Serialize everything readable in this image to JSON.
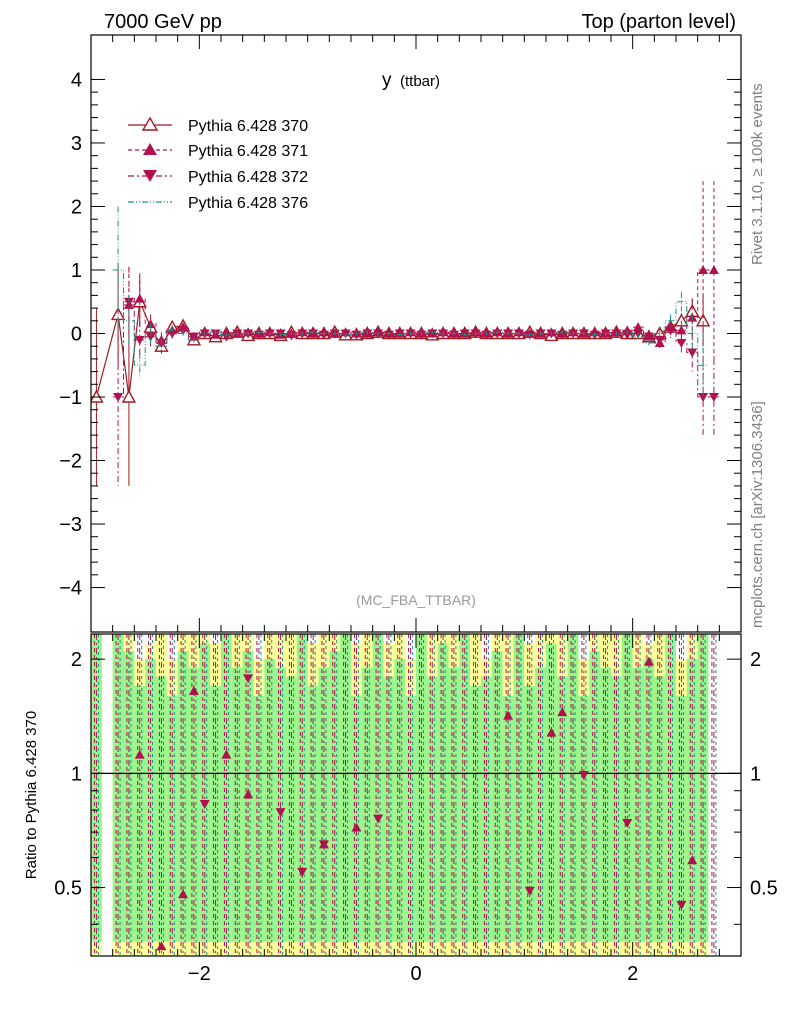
{
  "header": {
    "left": "7000 GeV pp",
    "right": "Top (parton level)"
  },
  "side_labels": {
    "top": "Rivet 3.1.10, ≥ 100k events",
    "bottom": "mcplots.cern.ch [arXiv:1306.3436]"
  },
  "colors": {
    "s370": "#9e1b22",
    "s371": "#b0124f",
    "s372": "#b0124f",
    "s376": "#1f8f86",
    "band_yellow": "#ffff99",
    "band_green": "#99f58c"
  },
  "chart_data": [
    {
      "type": "line",
      "title": "y (ttbar)",
      "title_main": "y",
      "title_sub": "(ttbar)",
      "analysis": "(MC_FBA_TTBAR)",
      "xlim": [
        -3.0,
        3.0
      ],
      "ylim": [
        -4.7,
        4.7
      ],
      "yticks": [
        -4,
        -3,
        -2,
        -1,
        0,
        1,
        2,
        3,
        4
      ],
      "ytick_labels": [
        "−4",
        "−3",
        "−2",
        "−1",
        "0",
        "1",
        "2",
        "3",
        "4"
      ],
      "legend_position": "top-left",
      "x": [
        -2.95,
        -2.75,
        -2.65,
        -2.55,
        -2.45,
        -2.35,
        -2.25,
        -2.15,
        -2.05,
        -1.95,
        -1.85,
        -1.75,
        -1.65,
        -1.55,
        -1.45,
        -1.35,
        -1.25,
        -1.15,
        -1.05,
        -0.95,
        -0.85,
        -0.75,
        -0.65,
        -0.55,
        -0.45,
        -0.35,
        -0.25,
        -0.15,
        -0.05,
        0.05,
        0.15,
        0.25,
        0.35,
        0.45,
        0.55,
        0.65,
        0.75,
        0.85,
        0.95,
        1.05,
        1.15,
        1.25,
        1.35,
        1.45,
        1.55,
        1.65,
        1.75,
        1.85,
        1.95,
        2.05,
        2.15,
        2.25,
        2.35,
        2.45,
        2.55,
        2.65,
        2.75
      ],
      "series": [
        {
          "name": "Pythia 6.428 370",
          "marker": "triangle-up-open",
          "style": "solid",
          "values": [
            -1.0,
            0.3,
            -1.0,
            0.5,
            0.1,
            -0.2,
            0.1,
            0.12,
            -0.1,
            0.0,
            -0.05,
            0.0,
            0.02,
            -0.03,
            0.0,
            0.0,
            -0.03,
            0.02,
            0.0,
            0.0,
            0.0,
            0.02,
            -0.02,
            -0.02,
            0.0,
            0.02,
            0.0,
            0.0,
            0.0,
            0.0,
            -0.02,
            0.0,
            0.0,
            0.0,
            0.02,
            0.0,
            0.0,
            0.0,
            0.0,
            0.02,
            0.0,
            -0.03,
            0.0,
            0.0,
            0.0,
            0.0,
            0.0,
            0.02,
            0.0,
            0.0,
            -0.05,
            0.0,
            0.1,
            0.2,
            0.35,
            0.2,
            null
          ],
          "errors": [
            1.4,
            0.8,
            1.4,
            0.4,
            0.15,
            0.12,
            0.08,
            0.06,
            0.05,
            0.04,
            0.04,
            0.03,
            0.03,
            0.03,
            0.03,
            0.03,
            0.03,
            0.03,
            0.03,
            0.03,
            0.03,
            0.03,
            0.03,
            0.03,
            0.03,
            0.03,
            0.03,
            0.03,
            0.03,
            0.03,
            0.03,
            0.03,
            0.03,
            0.03,
            0.03,
            0.03,
            0.03,
            0.03,
            0.03,
            0.03,
            0.03,
            0.03,
            0.03,
            0.03,
            0.03,
            0.03,
            0.03,
            0.03,
            0.04,
            0.04,
            0.05,
            0.06,
            0.08,
            0.12,
            0.2,
            0.4,
            null
          ]
        },
        {
          "name": "Pythia 6.428 371",
          "marker": "triangle-up-filled",
          "style": "dashed",
          "values": [
            null,
            null,
            0.45,
            0.55,
            0.15,
            -0.1,
            0.05,
            0.1,
            -0.05,
            0.02,
            -0.02,
            0.03,
            0.0,
            0.02,
            0.0,
            0.02,
            -0.02,
            0.0,
            0.02,
            0.0,
            0.02,
            0.0,
            0.02,
            0.0,
            0.0,
            0.02,
            0.0,
            0.0,
            0.02,
            0.0,
            0.0,
            0.02,
            0.0,
            0.0,
            0.02,
            0.0,
            0.02,
            0.0,
            0.02,
            0.0,
            0.0,
            0.02,
            0.0,
            0.02,
            0.0,
            0.02,
            0.0,
            0.02,
            0.05,
            0.1,
            -0.05,
            -0.15,
            0.1,
            0.05,
            0.25,
            1.0,
            1.0
          ],
          "errors": [
            null,
            null,
            0.6,
            0.4,
            0.15,
            0.12,
            0.08,
            0.06,
            0.05,
            0.04,
            0.04,
            0.03,
            0.03,
            0.03,
            0.03,
            0.03,
            0.03,
            0.03,
            0.03,
            0.03,
            0.03,
            0.03,
            0.03,
            0.03,
            0.03,
            0.03,
            0.03,
            0.03,
            0.03,
            0.03,
            0.03,
            0.03,
            0.03,
            0.03,
            0.03,
            0.03,
            0.03,
            0.03,
            0.03,
            0.03,
            0.03,
            0.03,
            0.03,
            0.03,
            0.03,
            0.03,
            0.03,
            0.03,
            0.04,
            0.05,
            0.06,
            0.08,
            0.12,
            0.15,
            0.3,
            1.4,
            1.4
          ]
        },
        {
          "name": "Pythia 6.428 372",
          "marker": "triangle-down-filled",
          "style": "dashdot",
          "values": [
            null,
            -1.0,
            0.5,
            -0.1,
            -0.05,
            -0.15,
            0.0,
            0.05,
            -0.05,
            0.0,
            0.0,
            -0.05,
            0.0,
            0.0,
            -0.02,
            0.0,
            0.0,
            -0.03,
            0.0,
            0.0,
            -0.02,
            0.0,
            0.0,
            -0.02,
            0.0,
            0.0,
            -0.02,
            0.0,
            0.0,
            -0.02,
            0.0,
            0.0,
            -0.02,
            0.0,
            0.0,
            -0.02,
            0.0,
            0.0,
            0.0,
            -0.02,
            0.0,
            0.0,
            -0.02,
            0.0,
            0.0,
            -0.02,
            0.0,
            0.0,
            -0.02,
            0.0,
            -0.05,
            -0.1,
            0.05,
            -0.15,
            -0.3,
            -1.0,
            -1.0
          ],
          "errors": [
            null,
            1.4,
            0.55,
            0.3,
            0.15,
            0.12,
            0.08,
            0.06,
            0.05,
            0.04,
            0.04,
            0.03,
            0.03,
            0.03,
            0.03,
            0.03,
            0.03,
            0.03,
            0.03,
            0.03,
            0.03,
            0.03,
            0.03,
            0.03,
            0.03,
            0.03,
            0.03,
            0.03,
            0.03,
            0.03,
            0.03,
            0.03,
            0.03,
            0.03,
            0.03,
            0.03,
            0.03,
            0.03,
            0.03,
            0.03,
            0.03,
            0.03,
            0.03,
            0.03,
            0.03,
            0.03,
            0.03,
            0.03,
            0.04,
            0.05,
            0.06,
            0.08,
            0.12,
            0.15,
            0.3,
            0.6,
            0.6
          ]
        },
        {
          "name": "Pythia 6.428 376",
          "marker": "none",
          "style": "dashdotdot",
          "values": [
            null,
            1.0,
            0.2,
            -0.5,
            0.0,
            -0.2,
            0.05,
            0.0,
            -0.1,
            0.0,
            0.02,
            -0.02,
            0.0,
            0.0,
            0.02,
            0.0,
            -0.02,
            0.0,
            0.0,
            0.02,
            0.0,
            0.0,
            -0.02,
            0.0,
            0.02,
            0.0,
            0.0,
            -0.02,
            0.0,
            0.0,
            0.02,
            0.0,
            0.0,
            -0.02,
            0.0,
            0.0,
            0.02,
            0.0,
            0.0,
            -0.02,
            0.0,
            0.0,
            0.02,
            0.0,
            0.0,
            -0.02,
            0.0,
            0.0,
            0.02,
            -0.05,
            -0.15,
            0.0,
            0.2,
            0.5,
            0.0,
            -0.5,
            null
          ],
          "errors": [
            null,
            1.0,
            0.4,
            0.2,
            0.15,
            0.12,
            0.08,
            0.06,
            0.05,
            0.04,
            0.04,
            0.03,
            0.03,
            0.03,
            0.03,
            0.03,
            0.03,
            0.03,
            0.03,
            0.03,
            0.03,
            0.03,
            0.03,
            0.03,
            0.03,
            0.03,
            0.03,
            0.03,
            0.03,
            0.03,
            0.03,
            0.03,
            0.03,
            0.03,
            0.03,
            0.03,
            0.03,
            0.03,
            0.03,
            0.03,
            0.03,
            0.03,
            0.03,
            0.03,
            0.03,
            0.03,
            0.03,
            0.03,
            0.04,
            0.05,
            0.06,
            0.08,
            0.1,
            0.15,
            0.3,
            0.5,
            null
          ]
        }
      ]
    },
    {
      "type": "line",
      "ylabel": "Ratio to Pythia 6.428 370",
      "xlim": [
        -3.0,
        3.0
      ],
      "ylim": [
        0.33,
        2.33
      ],
      "xticks": [
        -2,
        0,
        2
      ],
      "xtick_labels": [
        "−2",
        "0",
        "2"
      ],
      "yticks": [
        0.5,
        1,
        2
      ],
      "ytick_labels": [
        "0.5",
        "1",
        "2"
      ],
      "reference_line": 1,
      "bands": {
        "x": [
          -2.95,
          -2.85,
          -2.75,
          -2.65,
          -2.55,
          -2.45,
          -2.35,
          -2.25,
          -2.15,
          -2.05,
          -1.95,
          -1.85,
          -1.75,
          -1.65,
          -1.55,
          -1.45,
          -1.35,
          -1.25,
          -1.15,
          -1.05,
          -0.95,
          -0.85,
          -0.75,
          -0.65,
          -0.55,
          -0.45,
          -0.35,
          -0.25,
          -0.15,
          -0.05,
          0.05,
          0.15,
          0.25,
          0.35,
          0.45,
          0.55,
          0.65,
          0.75,
          0.85,
          0.95,
          1.05,
          1.15,
          1.25,
          1.35,
          1.45,
          1.55,
          1.65,
          1.75,
          1.85,
          1.95,
          2.05,
          2.15,
          2.25,
          2.35,
          2.45,
          2.55,
          2.65
        ],
        "yellow_top": [
          2.4,
          0.0,
          2.4,
          2.4,
          2.0,
          2.2,
          2.4,
          2.0,
          2.4,
          2.4,
          2.4,
          2.2,
          2.4,
          2.4,
          2.4,
          2.0,
          2.4,
          2.4,
          2.4,
          2.4,
          2.2,
          2.4,
          2.4,
          2.4,
          2.2,
          2.4,
          2.4,
          2.2,
          2.4,
          2.0,
          2.4,
          2.4,
          2.4,
          2.4,
          2.4,
          2.4,
          2.0,
          2.4,
          2.4,
          2.4,
          2.2,
          2.4,
          2.4,
          2.4,
          2.4,
          2.0,
          2.4,
          2.4,
          2.4,
          2.4,
          2.4,
          2.2,
          2.4,
          2.4,
          2.0,
          2.4,
          2.4
        ],
        "green_top": [
          2.4,
          0.0,
          2.4,
          2.1,
          1.7,
          2.0,
          1.8,
          1.6,
          2.1,
          1.9,
          2.2,
          1.7,
          2.4,
          1.9,
          2.1,
          1.6,
          2.0,
          1.9,
          1.8,
          2.4,
          1.7,
          1.9,
          2.1,
          2.4,
          1.6,
          1.9,
          2.4,
          1.8,
          2.0,
          1.6,
          2.4,
          1.8,
          2.2,
          1.9,
          2.4,
          1.7,
          1.8,
          2.1,
          1.6,
          2.4,
          1.7,
          1.9,
          2.2,
          1.8,
          2.4,
          1.6,
          2.1,
          1.9,
          1.8,
          2.4,
          1.9,
          2.0,
          1.8,
          2.4,
          1.6,
          2.0,
          2.4
        ]
      },
      "series": [
        {
          "name": "Pythia 6.428 371",
          "marker": "triangle-up-filled",
          "x": [
            -2.55,
            -2.35,
            -2.15,
            -2.05,
            -1.75,
            -1.55,
            -0.85,
            -0.55,
            0.85,
            1.25,
            1.35,
            2.15,
            2.55
          ],
          "values": [
            1.12,
            0.35,
            0.48,
            1.65,
            1.12,
            0.88,
            0.65,
            0.72,
            1.42,
            1.28,
            1.45,
            1.97,
            0.59
          ]
        },
        {
          "name": "Pythia 6.428 372",
          "marker": "triangle-down-filled",
          "x": [
            -1.95,
            -1.55,
            -1.25,
            -1.05,
            -0.85,
            -0.35,
            1.05,
            1.55,
            1.95,
            2.45
          ],
          "values": [
            0.83,
            1.78,
            0.79,
            0.55,
            0.65,
            0.76,
            0.49,
            0.99,
            0.74,
            0.45
          ]
        }
      ]
    }
  ]
}
